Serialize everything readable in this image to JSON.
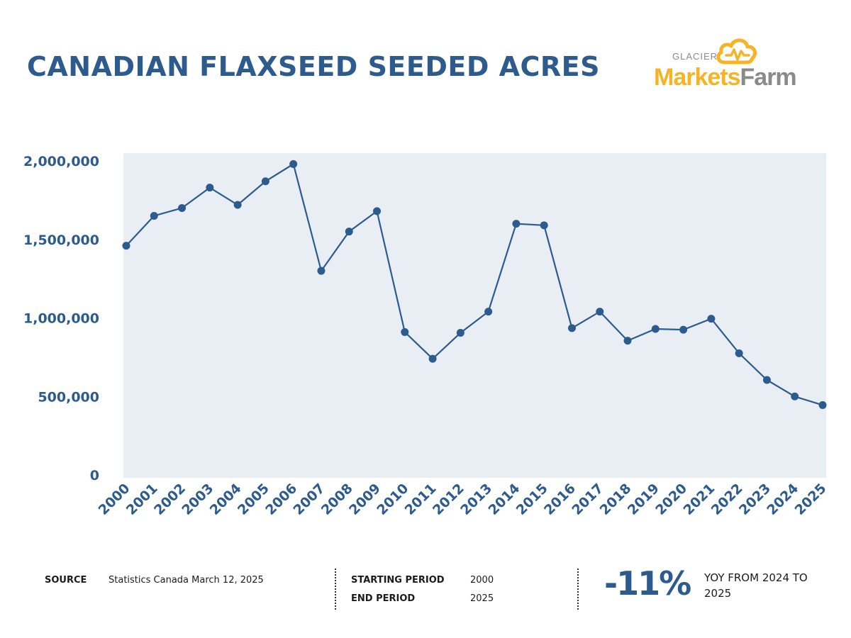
{
  "header": {
    "title": "CANADIAN FLAXSEED SEEDED ACRES",
    "logo_small": "GLACIER",
    "logo_part1": "Markets",
    "logo_part2": "Farm"
  },
  "colors": {
    "accent": "#2d5b8e",
    "plot_background": "#e9eef4",
    "logo_orange": "#f5b325",
    "logo_gray": "#8a8a8a"
  },
  "chart_data": {
    "type": "line",
    "title": "CANADIAN FLAXSEED SEEDED ACRES",
    "xlabel": "",
    "ylabel": "",
    "x": [
      "2000",
      "2001",
      "2002",
      "2003",
      "2004",
      "2005",
      "2006",
      "2007",
      "2008",
      "2009",
      "2010",
      "2011",
      "2012",
      "2013",
      "2014",
      "2015",
      "2016",
      "2017",
      "2018",
      "2019",
      "2020",
      "2021",
      "2022",
      "2023",
      "2024",
      "2025"
    ],
    "series": [
      {
        "values": [
          1460000,
          1650000,
          1700000,
          1830000,
          1720000,
          1870000,
          1980000,
          1300000,
          1550000,
          1680000,
          910000,
          740000,
          905000,
          1040000,
          1600000,
          1590000,
          935000,
          1040000,
          855000,
          930000,
          925000,
          995000,
          775000,
          605000,
          500000,
          445000
        ]
      }
    ],
    "ylim": [
      0,
      2000000
    ],
    "yticks": [
      0,
      500000,
      1000000,
      1500000,
      2000000
    ],
    "ytick_labels": [
      "0",
      "500,000",
      "1,000,000",
      "1,500,000",
      "2,000,000"
    ],
    "grid": false,
    "legend": "none"
  },
  "footer": {
    "source_label": "SOURCE",
    "source_value": "Statistics Canada March 12, 2025",
    "start_label": "STARTING PERIOD",
    "start_value": "2000",
    "end_label": "END PERIOD",
    "end_value": "2025",
    "change_value": "-11%",
    "change_desc": "YOY FROM 2024 TO 2025"
  }
}
